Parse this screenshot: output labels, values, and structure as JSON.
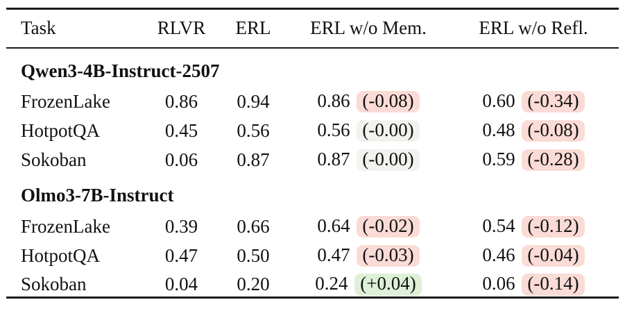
{
  "table": {
    "columns": [
      "Task",
      "RLVR",
      "ERL",
      "ERL w/o Mem.",
      "ERL w/o Refl."
    ],
    "sections": [
      {
        "title": "Qwen3-4B-Instruct-2507",
        "rows": [
          {
            "task": "FrozenLake",
            "rlvr": "0.86",
            "erl": "0.94",
            "mem": {
              "value": "0.86",
              "delta": "(-0.08)",
              "tone": "negative"
            },
            "refl": {
              "value": "0.60",
              "delta": "(-0.34)",
              "tone": "negative"
            }
          },
          {
            "task": "HotpotQA",
            "rlvr": "0.45",
            "erl": "0.56",
            "mem": {
              "value": "0.56",
              "delta": "(-0.00)",
              "tone": "neutral"
            },
            "refl": {
              "value": "0.48",
              "delta": "(-0.08)",
              "tone": "negative"
            }
          },
          {
            "task": "Sokoban",
            "rlvr": "0.06",
            "erl": "0.87",
            "mem": {
              "value": "0.87",
              "delta": "(-0.00)",
              "tone": "neutral"
            },
            "refl": {
              "value": "0.59",
              "delta": "(-0.28)",
              "tone": "negative"
            }
          }
        ]
      },
      {
        "title": "Olmo3-7B-Instruct",
        "rows": [
          {
            "task": "FrozenLake",
            "rlvr": "0.39",
            "erl": "0.66",
            "mem": {
              "value": "0.64",
              "delta": "(-0.02)",
              "tone": "negative"
            },
            "refl": {
              "value": "0.54",
              "delta": "(-0.12)",
              "tone": "negative"
            }
          },
          {
            "task": "HotpotQA",
            "rlvr": "0.47",
            "erl": "0.50",
            "mem": {
              "value": "0.47",
              "delta": "(-0.03)",
              "tone": "negative"
            },
            "refl": {
              "value": "0.46",
              "delta": "(-0.04)",
              "tone": "negative"
            }
          },
          {
            "task": "Sokoban",
            "rlvr": "0.04",
            "erl": "0.20",
            "mem": {
              "value": "0.24",
              "delta": "(+0.04)",
              "tone": "positive"
            },
            "refl": {
              "value": "0.06",
              "delta": "(-0.14)",
              "tone": "negative"
            }
          }
        ]
      }
    ]
  },
  "colors": {
    "negative_highlight": "#fadbd6",
    "positive_highlight": "#def0d7",
    "neutral_highlight": "#f3f2ef",
    "rule": "#1b1b1b",
    "text": "#111111"
  }
}
